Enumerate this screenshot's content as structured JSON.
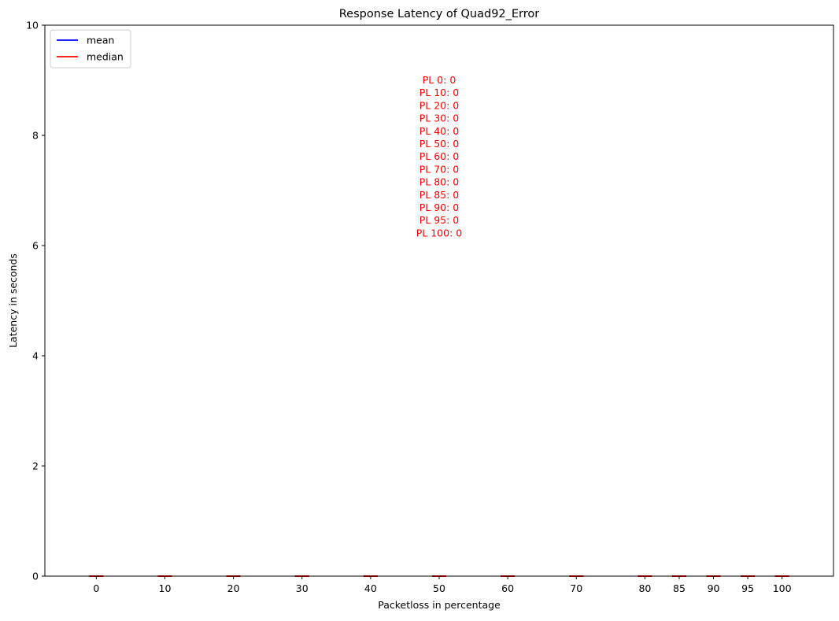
{
  "chart_data": {
    "type": "box",
    "title": "Response Latency of Quad92_Error",
    "xlabel": "Packetloss in percentage",
    "ylabel": "Latency in seconds",
    "ylim": [
      0,
      10
    ],
    "yticks": [
      "0",
      "2",
      "4",
      "6",
      "8",
      "10"
    ],
    "yticks_values": [
      0,
      2,
      4,
      6,
      8,
      10
    ],
    "categories": [
      "0",
      "10",
      "20",
      "30",
      "40",
      "50",
      "60",
      "70",
      "80",
      "85",
      "90",
      "95",
      "100"
    ],
    "x": [
      0,
      10,
      20,
      30,
      40,
      50,
      60,
      70,
      80,
      85,
      90,
      95,
      100
    ],
    "xlim": [
      -7.5,
      107.5
    ],
    "series": [
      {
        "name": "mean",
        "color": "#0000ff",
        "values": [
          0,
          0,
          0,
          0,
          0,
          0,
          0,
          0,
          0,
          0,
          0,
          0,
          0
        ]
      },
      {
        "name": "median",
        "color": "#ff0000",
        "values": [
          0,
          0,
          0,
          0,
          0,
          0,
          0,
          0,
          0,
          0,
          0,
          0,
          0
        ]
      }
    ],
    "legend": {
      "placement": "upper-left",
      "entries": [
        "mean",
        "median"
      ]
    },
    "annotation": {
      "color": "#ff0000",
      "lines": [
        "PL 0: 0",
        "PL 10: 0",
        "PL 20: 0",
        "PL 30: 0",
        "PL 40: 0",
        "PL 50: 0",
        "PL 60: 0",
        "PL 70: 0",
        "PL 80: 0",
        "PL 85: 0",
        "PL 90: 0",
        "PL 95: 0",
        "PL 100: 0"
      ]
    },
    "grid": false
  }
}
